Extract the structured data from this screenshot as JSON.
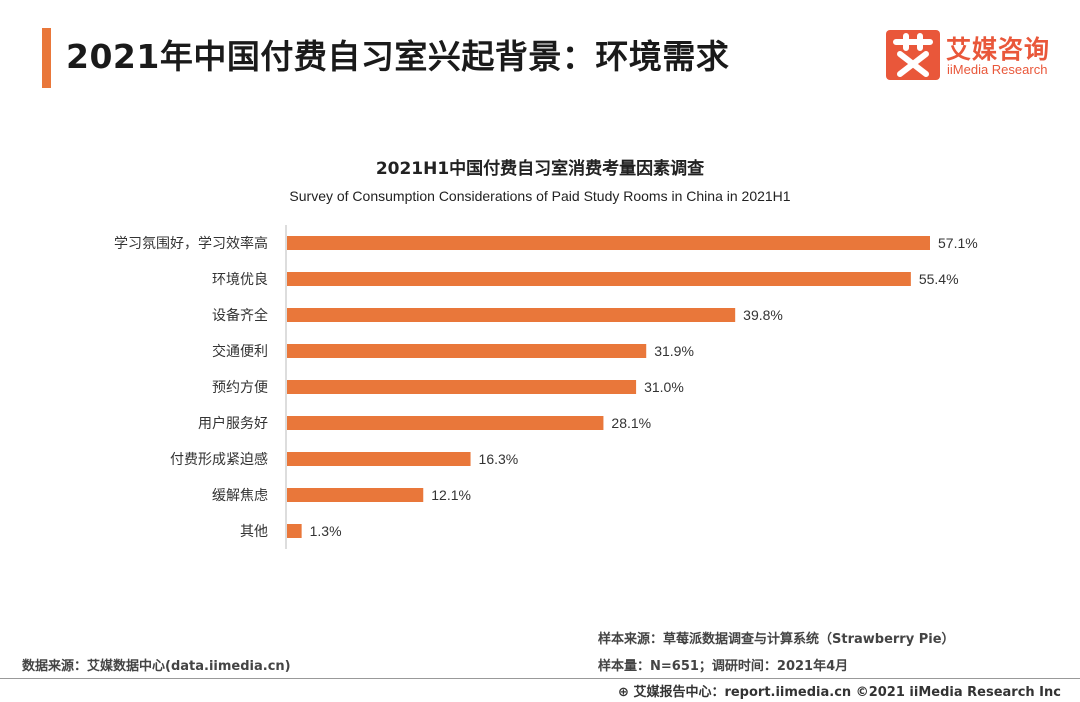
{
  "header": {
    "title": "2021年中国付费自习室兴起背景：环境需求",
    "logo_name": "艾媒咨询",
    "logo_sub": "iiMedia Research"
  },
  "chart_data": {
    "type": "bar",
    "orientation": "horizontal",
    "title": "2021H1中国付费自习室消费考量因素调查",
    "subtitle": "Survey of Consumption Considerations of Paid Study Rooms in China in 2021H1",
    "categories": [
      "学习氛围好，学习效率高",
      "环境优良",
      "设备齐全",
      "交通便利",
      "预约方便",
      "用户服务好",
      "付费形成紧迫感",
      "缓解焦虑",
      "其他"
    ],
    "values": [
      57.1,
      55.4,
      39.8,
      31.9,
      31.0,
      28.1,
      16.3,
      12.1,
      1.3
    ],
    "labels": [
      "57.1%",
      "55.4%",
      "39.8%",
      "31.9%",
      "31.0%",
      "28.1%",
      "16.3%",
      "12.1%",
      "1.3%"
    ],
    "unit": "%",
    "xlim": [
      0,
      57.1
    ],
    "bar_color": "#e9773a"
  },
  "footer": {
    "data_source": "数据来源：艾媒数据中心(data.iimedia.cn)",
    "sample_source": "样本来源：草莓派数据调查与计算系统（Strawberry Pie）",
    "sample_size": "样本量：N=651；调研时间：2021年4月",
    "copyright": "艾媒报告中心：report.iimedia.cn  ©2021  iiMedia Research  Inc"
  }
}
